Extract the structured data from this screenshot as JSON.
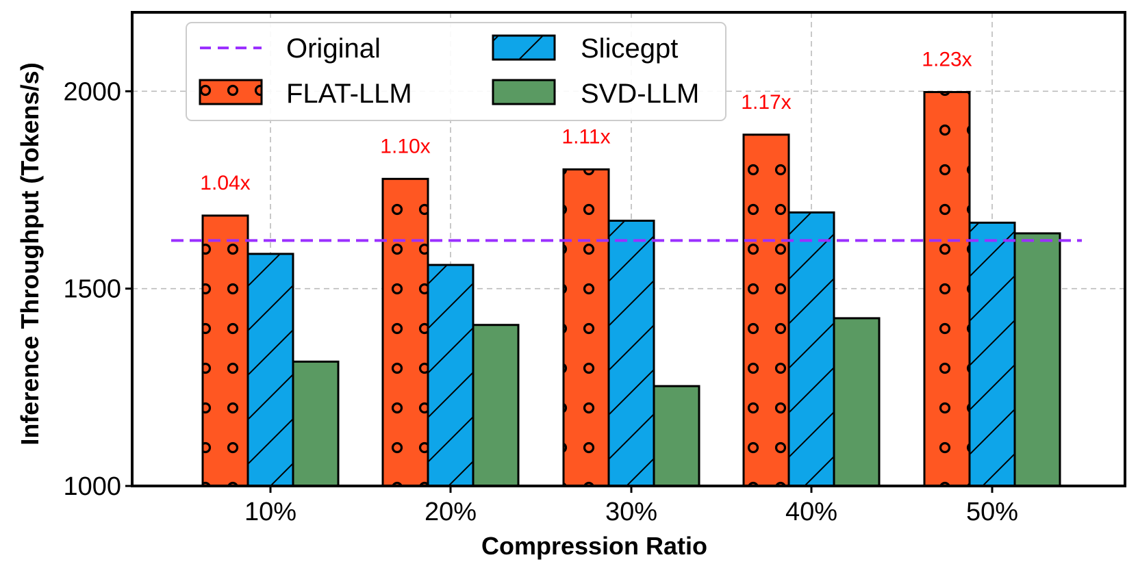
{
  "chart_data": {
    "type": "bar",
    "title": "",
    "xlabel": "Compression Ratio",
    "ylabel": "Inference Throughput (Tokens/s)",
    "ylim": [
      1000,
      2200
    ],
    "yticks": [
      1000,
      1500,
      2000
    ],
    "grid": true,
    "legend_position": "top-left",
    "categories": [
      "10%",
      "20%",
      "30%",
      "40%",
      "50%"
    ],
    "series": [
      {
        "name": "FLAT-LLM",
        "values": [
          1685,
          1778,
          1802,
          1890,
          1998
        ],
        "color": "#ff5722",
        "pattern": "circles"
      },
      {
        "name": "Slicegpt",
        "values": [
          1588,
          1560,
          1672,
          1693,
          1667
        ],
        "color": "#0ea5e9",
        "pattern": "diagonal"
      },
      {
        "name": "SVD-LLM",
        "values": [
          1315,
          1408,
          1253,
          1425,
          1640
        ],
        "color": "#5a9a62",
        "pattern": "none"
      }
    ],
    "reference_line": {
      "name": "Original",
      "value": 1622,
      "color": "#9b30ff",
      "style": "dashed"
    },
    "annotations": [
      "1.04x",
      "1.10x",
      "1.11x",
      "1.17x",
      "1.23x"
    ],
    "annotation_color": "#ff0000"
  }
}
